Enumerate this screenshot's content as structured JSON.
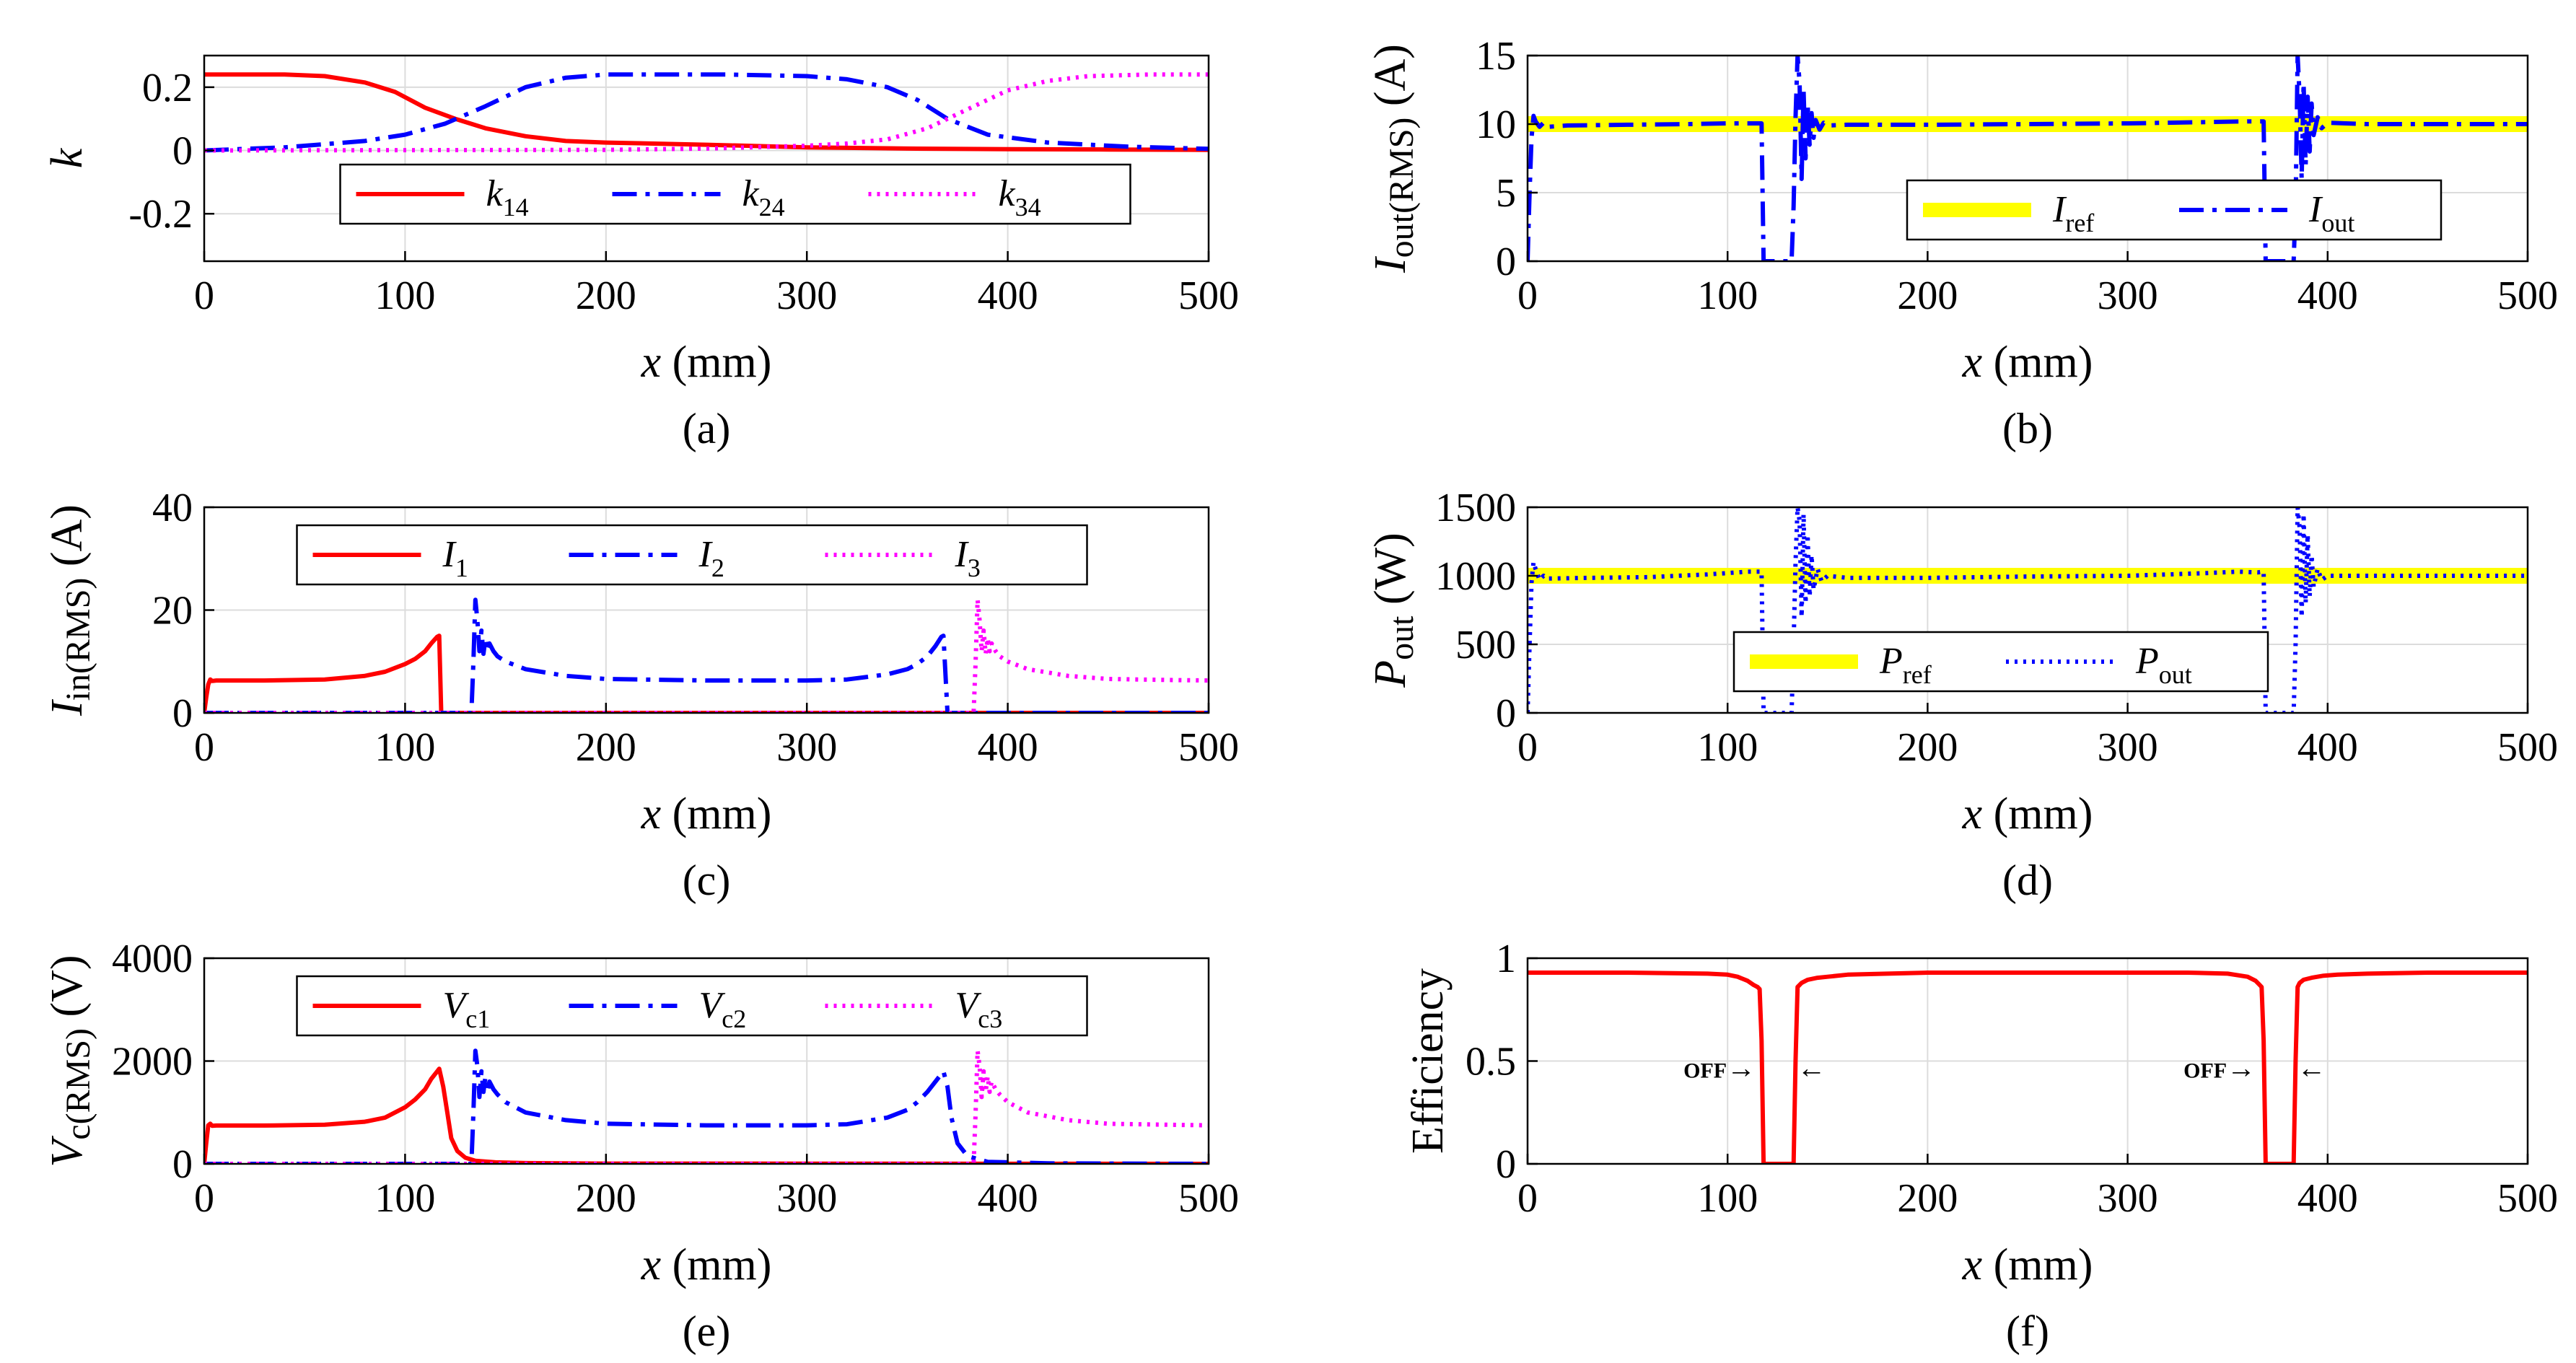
{
  "chart_data": [
    {
      "id": "a",
      "type": "line",
      "caption": "(a)",
      "xlabel": {
        "main": "x",
        "unit": " (mm)"
      },
      "ylabel": {
        "main": "k",
        "sub": "",
        "unit": ""
      },
      "xlim": [
        0,
        500
      ],
      "ylim": [
        -0.35,
        0.3
      ],
      "xticks": [
        0,
        100,
        200,
        300,
        400,
        500
      ],
      "yticks": [
        -0.2,
        0,
        0.2
      ],
      "yticklabels": [
        "-0.2",
        "0",
        "0.2"
      ],
      "grid": true,
      "legend": {
        "position": "lower-center",
        "layout": "horizontal"
      },
      "series": [
        {
          "name": "k",
          "name_sub": "14",
          "color": "#ff0000",
          "dash": "solid",
          "x": [
            0,
            20,
            40,
            60,
            80,
            95,
            110,
            125,
            140,
            160,
            180,
            200,
            250,
            300,
            350,
            400,
            450,
            500
          ],
          "y": [
            0.24,
            0.24,
            0.24,
            0.235,
            0.215,
            0.185,
            0.135,
            0.1,
            0.07,
            0.045,
            0.03,
            0.025,
            0.018,
            0.01,
            0.006,
            0.004,
            0.003,
            0.002
          ]
        },
        {
          "name": "k",
          "name_sub": "24",
          "color": "#0000ff",
          "dash": "dashdot",
          "x": [
            0,
            40,
            80,
            100,
            120,
            140,
            160,
            180,
            200,
            260,
            300,
            320,
            340,
            355,
            370,
            390,
            420,
            460,
            500
          ],
          "y": [
            0.0,
            0.01,
            0.03,
            0.05,
            0.085,
            0.14,
            0.2,
            0.23,
            0.24,
            0.24,
            0.235,
            0.225,
            0.2,
            0.16,
            0.1,
            0.05,
            0.025,
            0.012,
            0.005
          ]
        },
        {
          "name": "k",
          "name_sub": "34",
          "color": "#ff00ff",
          "dash": "dotted",
          "x": [
            0,
            200,
            250,
            300,
            320,
            340,
            360,
            380,
            400,
            420,
            440,
            470,
            500
          ],
          "y": [
            0.0,
            0.002,
            0.006,
            0.015,
            0.022,
            0.035,
            0.07,
            0.13,
            0.19,
            0.22,
            0.235,
            0.24,
            0.24
          ]
        }
      ]
    },
    {
      "id": "b",
      "type": "line",
      "caption": "(b)",
      "xlabel": {
        "main": "x",
        "unit": " (mm)"
      },
      "ylabel": {
        "main": "I",
        "sub": "out(RMS)",
        "unit": " (A)"
      },
      "xlim": [
        0,
        500
      ],
      "ylim": [
        0,
        15
      ],
      "xticks": [
        0,
        100,
        200,
        300,
        400,
        500
      ],
      "yticks": [
        0,
        5,
        10,
        15
      ],
      "yticklabels": [
        "0",
        "5",
        "10",
        "15"
      ],
      "grid": true,
      "legend": {
        "position": "bottom-right",
        "layout": "horizontal"
      },
      "series": [
        {
          "name": "I",
          "name_sub": "ref",
          "color": "#ffff00",
          "dash": "thick",
          "x": [
            0,
            500
          ],
          "y": [
            10,
            10
          ]
        },
        {
          "name": "I",
          "name_sub": "out",
          "color": "#0000ff",
          "dash": "dashdot",
          "x": [
            0,
            1,
            2,
            3,
            4,
            6,
            8,
            10,
            20,
            50,
            80,
            100,
            115,
            117,
            118,
            132,
            133,
            134,
            135,
            136,
            137,
            138,
            139,
            140,
            141,
            142,
            143,
            144,
            146,
            148,
            150,
            160,
            200,
            250,
            300,
            340,
            360,
            368,
            369,
            370,
            383,
            384,
            385,
            386,
            387,
            388,
            389,
            390,
            391,
            392,
            393,
            395,
            397,
            400,
            420,
            460,
            500
          ],
          "y": [
            0,
            5,
            9,
            10.6,
            10.2,
            9.8,
            10.1,
            9.8,
            9.9,
            9.95,
            10.0,
            10.05,
            10.05,
            10.05,
            0,
            0,
            4,
            10.5,
            15,
            13,
            6,
            12.5,
            7.5,
            11.5,
            8.5,
            10.8,
            9,
            10.3,
            9.6,
            10.1,
            9.9,
            9.95,
            9.95,
            10.0,
            10.05,
            10.15,
            10.2,
            10.2,
            0,
            0,
            0,
            4,
            15,
            12,
            6,
            13,
            7,
            12,
            8,
            11.5,
            9.2,
            10.5,
            9.7,
            10.1,
            10.0,
            10.0,
            10.0
          ]
        }
      ]
    },
    {
      "id": "c",
      "type": "line",
      "caption": "(c)",
      "xlabel": {
        "main": "x",
        "unit": " (mm)"
      },
      "ylabel": {
        "main": "I",
        "sub": "in(RMS)",
        "unit": " (A)"
      },
      "xlim": [
        0,
        500
      ],
      "ylim": [
        0,
        40
      ],
      "xticks": [
        0,
        100,
        200,
        300,
        400,
        500
      ],
      "yticks": [
        0,
        20,
        40
      ],
      "yticklabels": [
        "0",
        "20",
        "40"
      ],
      "grid": true,
      "legend": {
        "position": "top-center",
        "layout": "horizontal"
      },
      "series": [
        {
          "name": "I",
          "name_sub": "1",
          "color": "#ff0000",
          "dash": "solid",
          "x": [
            0,
            1,
            2,
            3,
            4,
            6,
            10,
            30,
            60,
            80,
            90,
            100,
            105,
            110,
            113,
            116,
            117,
            118,
            500
          ],
          "y": [
            0,
            3,
            5.5,
            6.5,
            6.2,
            6.3,
            6.3,
            6.3,
            6.5,
            7.2,
            8,
            9.5,
            10.5,
            12,
            13.5,
            14.8,
            15,
            0,
            0
          ]
        },
        {
          "name": "I",
          "name_sub": "2",
          "color": "#0000ff",
          "dash": "dashdot",
          "x": [
            0,
            132,
            133,
            134,
            135,
            136,
            137,
            138,
            139,
            140,
            141,
            142,
            144,
            146,
            150,
            160,
            180,
            200,
            250,
            300,
            320,
            340,
            350,
            355,
            360,
            364,
            367,
            368,
            370,
            500
          ],
          "y": [
            0,
            0,
            0,
            10,
            22,
            18,
            12,
            16,
            11.5,
            14.5,
            12,
            13.5,
            12,
            11,
            10,
            8.5,
            7.2,
            6.6,
            6.3,
            6.3,
            6.5,
            7.5,
            8.5,
            9.5,
            11,
            13,
            14.8,
            15,
            0,
            0
          ]
        },
        {
          "name": "I",
          "name_sub": "3",
          "color": "#ff00ff",
          "dash": "dotted",
          "x": [
            0,
            383,
            384,
            385,
            386,
            387,
            388,
            389,
            390,
            391,
            392,
            394,
            396,
            400,
            410,
            430,
            450,
            480,
            500
          ],
          "y": [
            0,
            0,
            10,
            22,
            18,
            12,
            16,
            11.5,
            14.5,
            12,
            13.5,
            12,
            11,
            10,
            8.5,
            7.2,
            6.6,
            6.4,
            6.3
          ]
        }
      ]
    },
    {
      "id": "d",
      "type": "line",
      "caption": "(d)",
      "xlabel": {
        "main": "x",
        "unit": " (mm)"
      },
      "ylabel": {
        "main": "P",
        "sub": "out",
        "unit": " (W)"
      },
      "xlim": [
        0,
        500
      ],
      "ylim": [
        0,
        1500
      ],
      "xticks": [
        0,
        100,
        200,
        300,
        400,
        500
      ],
      "yticks": [
        0,
        500,
        1000,
        1500
      ],
      "yticklabels": [
        "0",
        "500",
        "1000",
        "1500"
      ],
      "grid": true,
      "legend": {
        "position": "bottom-center",
        "layout": "horizontal"
      },
      "series": [
        {
          "name": "P",
          "name_sub": "ref",
          "color": "#ffff00",
          "dash": "thick",
          "x": [
            0,
            500
          ],
          "y": [
            1000,
            1000
          ]
        },
        {
          "name": "P",
          "name_sub": "out",
          "color": "#0000ff",
          "dash": "dotted",
          "x": [
            0,
            1,
            2,
            3,
            4,
            6,
            8,
            10,
            30,
            60,
            90,
            110,
            115,
            117,
            118,
            132,
            133,
            134,
            135,
            136,
            137,
            138,
            139,
            140,
            141,
            142,
            143,
            145,
            147,
            150,
            160,
            200,
            250,
            300,
            340,
            355,
            365,
            368,
            369,
            370,
            383,
            384,
            385,
            386,
            387,
            388,
            389,
            390,
            391,
            392,
            393,
            395,
            397,
            400,
            420,
            460,
            500
          ],
          "y": [
            0,
            500,
            950,
            1100,
            1050,
            970,
            1000,
            980,
            985,
            990,
            1010,
            1030,
            1030,
            1030,
            0,
            0,
            500,
            1100,
            1500,
            1400,
            700,
            1450,
            800,
            1300,
            850,
            1150,
            900,
            1050,
            960,
            1000,
            985,
            985,
            995,
            1000,
            1020,
            1030,
            1025,
            1030,
            0,
            0,
            0,
            500,
            1500,
            1350,
            700,
            1450,
            800,
            1300,
            850,
            1150,
            920,
            1050,
            970,
            1000,
            1000,
            1000,
            1000
          ]
        }
      ]
    },
    {
      "id": "e",
      "type": "line",
      "caption": "(e)",
      "xlabel": {
        "main": "x",
        "unit": " (mm)"
      },
      "ylabel": {
        "main": "V",
        "sub": "c(RMS)",
        "unit": " (V)"
      },
      "xlim": [
        0,
        500
      ],
      "ylim": [
        0,
        4000
      ],
      "xticks": [
        0,
        100,
        200,
        300,
        400,
        500
      ],
      "yticks": [
        0,
        2000,
        4000
      ],
      "yticklabels": [
        "0",
        "2000",
        "4000"
      ],
      "grid": true,
      "legend": {
        "position": "top-center",
        "layout": "horizontal"
      },
      "series": [
        {
          "name": "V",
          "name_sub": "c1",
          "color": "#ff0000",
          "dash": "solid",
          "x": [
            0,
            1,
            2,
            3,
            4,
            6,
            10,
            30,
            60,
            80,
            90,
            100,
            105,
            110,
            113,
            116,
            117,
            119,
            121,
            123,
            126,
            130,
            135,
            145,
            160,
            200,
            500
          ],
          "y": [
            0,
            400,
            750,
            780,
            740,
            745,
            745,
            745,
            760,
            820,
            900,
            1100,
            1250,
            1450,
            1650,
            1800,
            1850,
            1500,
            1000,
            500,
            250,
            120,
            60,
            30,
            15,
            5,
            0
          ]
        },
        {
          "name": "V",
          "name_sub": "c2",
          "color": "#0000ff",
          "dash": "dashdot",
          "x": [
            0,
            132,
            133,
            134,
            135,
            136,
            137,
            138,
            139,
            140,
            141,
            142,
            144,
            146,
            150,
            160,
            180,
            200,
            250,
            300,
            320,
            340,
            350,
            355,
            360,
            364,
            367,
            368,
            370,
            372,
            375,
            380,
            390,
            420,
            500
          ],
          "y": [
            0,
            0,
            0,
            1000,
            2200,
            1900,
            1300,
            1800,
            1400,
            1700,
            1400,
            1600,
            1450,
            1350,
            1200,
            1000,
            850,
            780,
            750,
            750,
            770,
            900,
            1050,
            1200,
            1400,
            1600,
            1750,
            1800,
            1500,
            900,
            400,
            150,
            40,
            10,
            0
          ]
        },
        {
          "name": "V",
          "name_sub": "c3",
          "color": "#ff00ff",
          "dash": "dotted",
          "x": [
            0,
            383,
            384,
            385,
            386,
            387,
            388,
            389,
            390,
            391,
            392,
            394,
            396,
            400,
            410,
            430,
            450,
            480,
            500
          ],
          "y": [
            0,
            0,
            1000,
            2200,
            1900,
            1300,
            1800,
            1400,
            1700,
            1400,
            1600,
            1450,
            1350,
            1200,
            1000,
            850,
            780,
            760,
            750
          ]
        }
      ]
    },
    {
      "id": "f",
      "type": "line",
      "caption": "(f)",
      "xlabel": {
        "main": "x",
        "unit": " (mm)"
      },
      "ylabel": {
        "main": "Efficiency",
        "sub": "",
        "unit": ""
      },
      "xlim": [
        0,
        500
      ],
      "ylim": [
        0,
        1
      ],
      "xticks": [
        0,
        100,
        200,
        300,
        400,
        500
      ],
      "yticks": [
        0,
        0.5,
        1
      ],
      "yticklabels": [
        "0",
        "0.5",
        "1"
      ],
      "grid": true,
      "legend": null,
      "annotations": [
        {
          "text": "OFF",
          "arrow": "→",
          "x": 96,
          "y": 0.42
        },
        {
          "text": "",
          "arrow": "←",
          "x": 142,
          "y": 0.42
        },
        {
          "text": "OFF",
          "arrow": "→",
          "x": 346,
          "y": 0.42
        },
        {
          "text": "",
          "arrow": "←",
          "x": 392,
          "y": 0.42
        }
      ],
      "series": [
        {
          "name": "",
          "name_sub": "",
          "color": "#ff0000",
          "dash": "solid",
          "x": [
            0,
            50,
            90,
            100,
            105,
            110,
            113,
            115,
            116,
            117,
            118,
            132,
            133,
            134,
            135,
            137,
            140,
            145,
            150,
            160,
            180,
            200,
            250,
            300,
            330,
            350,
            360,
            364,
            366,
            367,
            368,
            369,
            383,
            384,
            385,
            386,
            388,
            392,
            398,
            405,
            420,
            450,
            500
          ],
          "y": [
            0.93,
            0.93,
            0.925,
            0.92,
            0.91,
            0.89,
            0.87,
            0.86,
            0.85,
            0.6,
            0,
            0,
            0,
            0.5,
            0.86,
            0.88,
            0.895,
            0.905,
            0.91,
            0.92,
            0.925,
            0.93,
            0.93,
            0.93,
            0.93,
            0.925,
            0.91,
            0.89,
            0.87,
            0.86,
            0.6,
            0,
            0,
            0.5,
            0.86,
            0.88,
            0.895,
            0.905,
            0.915,
            0.92,
            0.925,
            0.93,
            0.93
          ]
        }
      ]
    }
  ]
}
